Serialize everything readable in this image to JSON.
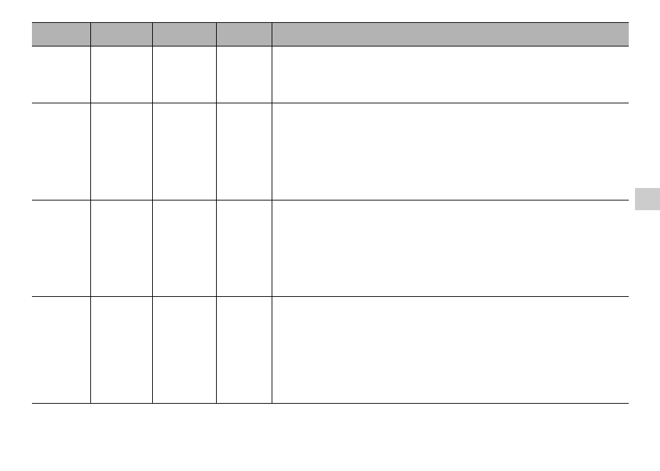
{
  "colors": {
    "header_background": "#b3b3b3",
    "side_tab": "#cccccc",
    "rule": "#000000"
  }
}
